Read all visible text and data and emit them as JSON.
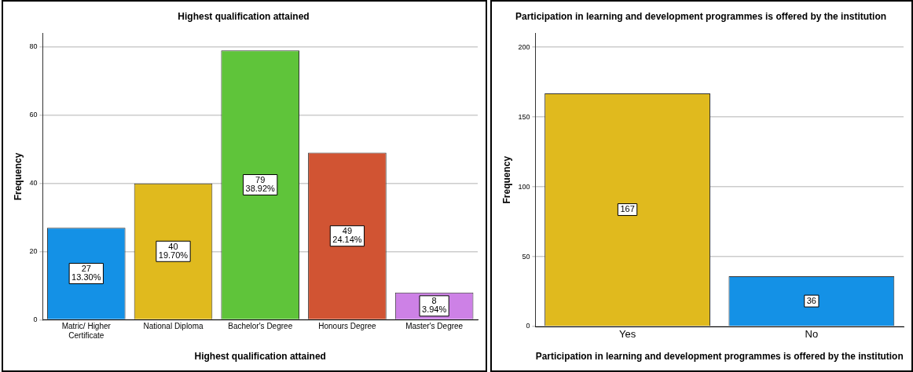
{
  "chart_data": [
    {
      "type": "bar",
      "title": "Highest qualification attained",
      "xlabel": "Highest qualification attained",
      "ylabel": "Frequency",
      "categories": [
        "Matric/ Higher Certificate",
        "National Diploma",
        "Bachelor's Degree",
        "Honours Degree",
        "Master's Degree"
      ],
      "values": [
        27,
        40,
        79,
        49,
        8
      ],
      "colors": [
        "#1491e6",
        "#e0ba1e",
        "#5fc43a",
        "#d15433",
        "#cd81e6"
      ],
      "value_labels": [
        "27\n13.30%",
        "40\n19.70%",
        "79\n38.92%",
        "49\n24.14%",
        "8\n3.94%"
      ],
      "ylim": [
        0,
        84
      ],
      "yticks": [
        0,
        20,
        40,
        60,
        80
      ],
      "grid": "y",
      "legend": false
    },
    {
      "type": "bar",
      "title": "Participation in learning and development programmes is offered by the institution",
      "xlabel": "Participation in learning and development programmes is offered by the institution",
      "ylabel": "Frequency",
      "categories": [
        "Yes",
        "No"
      ],
      "values": [
        167,
        36
      ],
      "colors": [
        "#e0ba1e",
        "#1491e6"
      ],
      "data_labels": true,
      "ylim": [
        0,
        210
      ],
      "yticks": [
        0,
        50,
        100,
        150,
        200
      ],
      "grid": "y",
      "legend": false
    }
  ]
}
